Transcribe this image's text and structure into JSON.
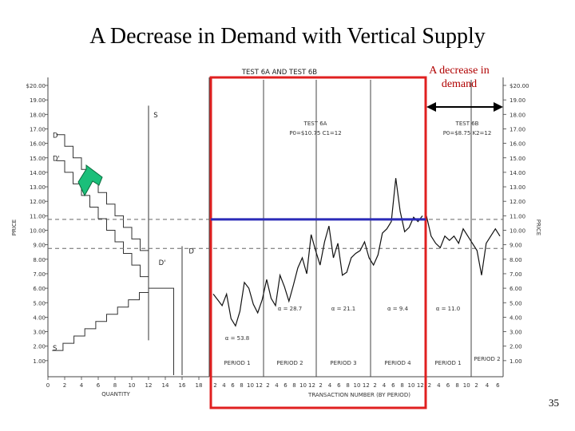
{
  "slide": {
    "title": "A Decrease in Demand with Vertical Supply",
    "callout": "A decrease in demand",
    "page_number": "35"
  },
  "chart_data": {
    "type": "line",
    "title": "TEST 6A AND TEST 6B",
    "left_ylabel": "PRICE",
    "right_ylabel": "PRICE",
    "left_xlabel": "QUANTITY",
    "right_xlabel": "TRANSACTION NUMBER (BY PERIOD)",
    "ylim": [
      0,
      20
    ],
    "left_y_ticks": [
      "1.00",
      "2.00",
      "3.00",
      "4.00",
      "5.00",
      "6.00",
      "7.00",
      "8.00",
      "9.00",
      "10.00",
      "11.00",
      "12.00",
      "13.00",
      "14.00",
      "15.00",
      "16.00",
      "17.00",
      "18.00",
      "19.00",
      "$20.00"
    ],
    "right_y_ticks": [
      "1.00",
      "2.00",
      "3.00",
      "4.00",
      "5.00",
      "6.00",
      "7.00",
      "8.00",
      "9.00",
      "10.00",
      "11.00",
      "12.00",
      "13.00",
      "14.00",
      "15.00",
      "16.00",
      "17.00",
      "18.00",
      "19.00",
      "$20.00"
    ],
    "quantity_ticks": [
      "0",
      "2",
      "4",
      "6",
      "8",
      "10",
      "12",
      "14",
      "16",
      "18"
    ],
    "curve_labels": {
      "demand": "D",
      "demand_shifted": "D'",
      "supply": "S",
      "demand_low": "D",
      "demand_low_shifted": "D'",
      "supply_low": "S"
    },
    "test_labels": [
      {
        "title": "TEST 6A",
        "params": "P0=$10.75  C1=12"
      },
      {
        "title": "TEST 6B",
        "params": "P0=$8.75  K2=12"
      }
    ],
    "periods": [
      {
        "label": "PERIOD 1",
        "alpha": "α = 53.8",
        "ticks": [
          "2",
          "4",
          "6",
          "8",
          "10",
          "12"
        ]
      },
      {
        "label": "PERIOD 2",
        "alpha": "α = 28.7",
        "ticks": [
          "2",
          "4",
          "6",
          "8",
          "10",
          "12"
        ]
      },
      {
        "label": "PERIOD 3",
        "alpha": "α = 21.1",
        "ticks": [
          "2",
          "4",
          "6",
          "8",
          "10",
          "12"
        ]
      },
      {
        "label": "PERIOD 4",
        "alpha": "α = 9.4",
        "ticks": [
          "2",
          "4",
          "6",
          "8",
          "10",
          "12"
        ]
      },
      {
        "label": "PERIOD 1",
        "alpha": "α = 11.0",
        "ticks": [
          "2",
          "4",
          "6",
          "8",
          "10"
        ]
      },
      {
        "label": "PERIOD 2",
        "alpha": "",
        "ticks": [
          "2",
          "4",
          "6"
        ]
      }
    ],
    "equilibria": {
      "test_6a": 10.75,
      "test_6b": 8.75
    },
    "series": [
      {
        "name": "Test 6A",
        "x": [
          1,
          2,
          3,
          4,
          5,
          6,
          7,
          8,
          9,
          10,
          11,
          12,
          13,
          14,
          15,
          16,
          17,
          18,
          19,
          20,
          21,
          22,
          23,
          24,
          25,
          26,
          27,
          28,
          29,
          30,
          31,
          32,
          33,
          34,
          35,
          36,
          37,
          38,
          39,
          40,
          41,
          42,
          43,
          44,
          45,
          46,
          47,
          48
        ],
        "y": [
          5.6,
          5.2,
          4.8,
          5.6,
          3.9,
          3.4,
          4.4,
          6.4,
          6.0,
          4.9,
          4.3,
          5.2,
          6.6,
          5.3,
          4.8,
          6.9,
          6.1,
          5.1,
          6.2,
          7.4,
          8.1,
          7.0,
          9.7,
          8.6,
          7.6,
          9.2,
          10.3,
          8.1,
          9.1,
          6.9,
          7.1,
          8.1,
          8.4,
          8.6,
          9.2,
          8.1,
          7.6,
          8.3,
          9.8,
          10.1,
          10.6,
          13.6,
          11.3,
          9.9,
          10.2,
          10.9,
          10.6,
          11.0
        ]
      },
      {
        "name": "Test 6B",
        "x": [
          1,
          2,
          3,
          4,
          5,
          6,
          7,
          8,
          9,
          10,
          11,
          12,
          13,
          14,
          15,
          16,
          17
        ],
        "y": [
          11.0,
          9.6,
          9.1,
          8.8,
          9.6,
          9.3,
          9.6,
          9.1,
          10.1,
          9.6,
          9.1,
          8.6,
          6.9,
          9.1,
          9.6,
          10.1,
          9.6
        ]
      }
    ]
  }
}
